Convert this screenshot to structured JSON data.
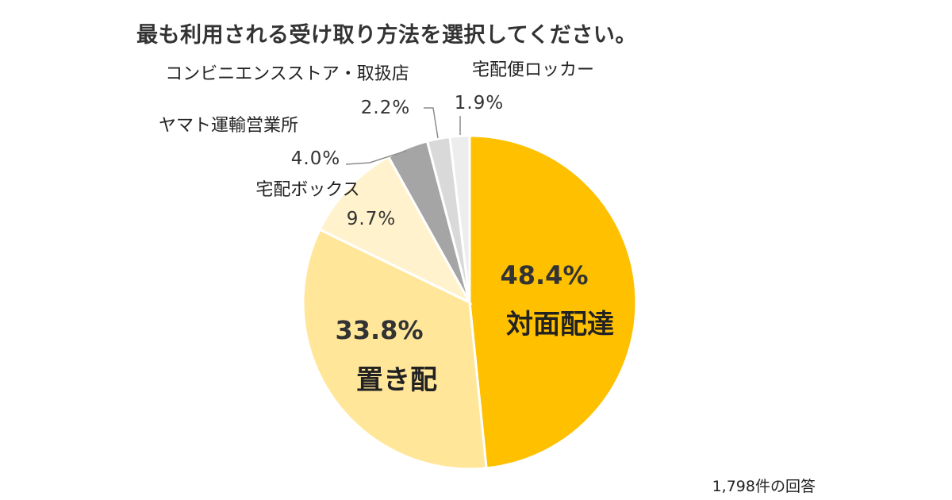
{
  "footnote": "1,798件の回答",
  "chart_data": {
    "type": "pie",
    "title": "最も利用される受け取り方法を選択してください。",
    "slices": [
      {
        "label": "対面配達",
        "value": 48.4,
        "value_label": "48.4%",
        "color": "#FFC000"
      },
      {
        "label": "置き配",
        "value": 33.8,
        "value_label": "33.8%",
        "color": "#FFE699"
      },
      {
        "label": "宅配ボックス",
        "value": 9.7,
        "value_label": "9.7%",
        "color": "#FFF2CC"
      },
      {
        "label": "ヤマト運輸営業所",
        "value": 4.0,
        "value_label": "4.0%",
        "color": "#A5A5A5"
      },
      {
        "label": "コンビニエンスストア・取扱店",
        "value": 2.2,
        "value_label": "2.2%",
        "color": "#D9D9D9"
      },
      {
        "label": "宅配便ロッカー",
        "value": 1.9,
        "value_label": "1.9%",
        "color": "#EDEDED"
      }
    ],
    "legend": "none"
  }
}
